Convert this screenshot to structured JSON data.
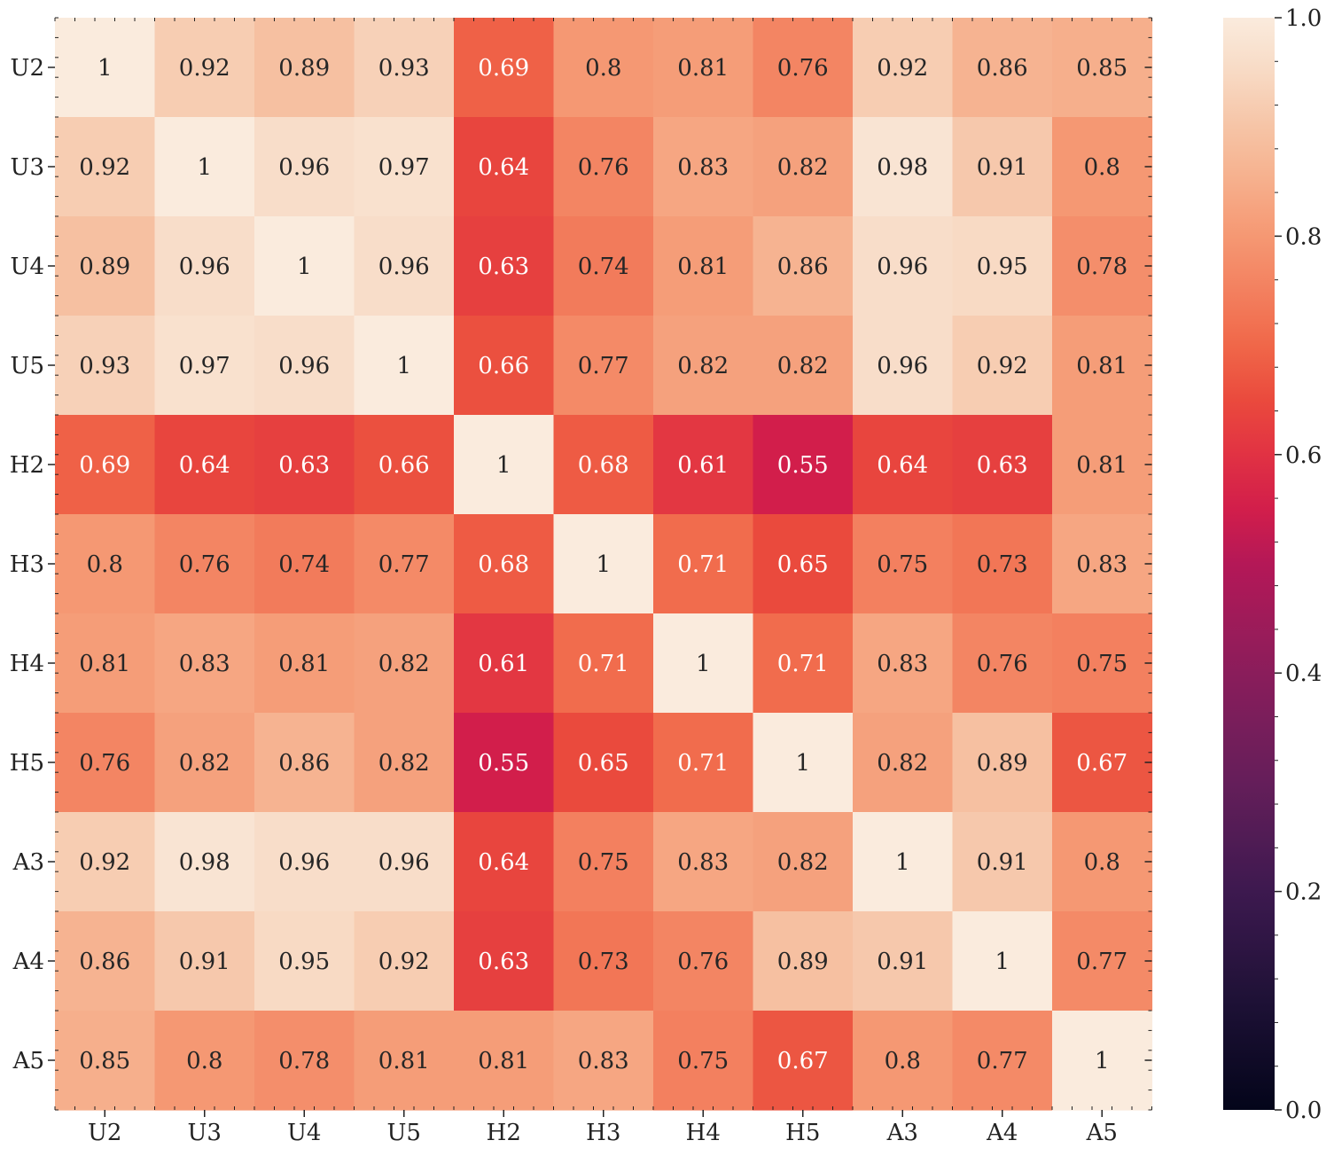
{
  "chart_data": {
    "type": "heatmap",
    "title": "",
    "xlabel": "",
    "ylabel": "",
    "x_categories": [
      "U2",
      "U3",
      "U4",
      "U5",
      "H2",
      "H3",
      "H4",
      "H5",
      "A3",
      "A4",
      "A5"
    ],
    "y_categories": [
      "U2",
      "U3",
      "U4",
      "U5",
      "H2",
      "H3",
      "H4",
      "H5",
      "A3",
      "A4",
      "A5"
    ],
    "values": [
      [
        1,
        0.92,
        0.89,
        0.93,
        0.69,
        0.8,
        0.81,
        0.76,
        0.92,
        0.86,
        0.85
      ],
      [
        0.92,
        1,
        0.96,
        0.97,
        0.64,
        0.76,
        0.83,
        0.82,
        0.98,
        0.91,
        0.8
      ],
      [
        0.89,
        0.96,
        1,
        0.96,
        0.63,
        0.74,
        0.81,
        0.86,
        0.96,
        0.95,
        0.78
      ],
      [
        0.93,
        0.97,
        0.96,
        1,
        0.66,
        0.77,
        0.82,
        0.82,
        0.96,
        0.92,
        0.81
      ],
      [
        0.69,
        0.64,
        0.63,
        0.66,
        1,
        0.68,
        0.61,
        0.55,
        0.64,
        0.63,
        0.81
      ],
      [
        0.8,
        0.76,
        0.74,
        0.77,
        0.68,
        1,
        0.71,
        0.65,
        0.75,
        0.73,
        0.83
      ],
      [
        0.81,
        0.83,
        0.81,
        0.82,
        0.61,
        0.71,
        1,
        0.71,
        0.83,
        0.76,
        0.75
      ],
      [
        0.76,
        0.82,
        0.86,
        0.82,
        0.55,
        0.65,
        0.71,
        1,
        0.82,
        0.89,
        0.67
      ],
      [
        0.92,
        0.98,
        0.96,
        0.96,
        0.64,
        0.75,
        0.83,
        0.82,
        1,
        0.91,
        0.8
      ],
      [
        0.86,
        0.91,
        0.95,
        0.92,
        0.63,
        0.73,
        0.76,
        0.89,
        0.91,
        1,
        0.77
      ],
      [
        0.85,
        0.8,
        0.78,
        0.81,
        0.81,
        0.83,
        0.75,
        0.67,
        0.8,
        0.77,
        1
      ]
    ],
    "annotated": true,
    "colormap": "rocket",
    "vmin": 0.0,
    "vmax": 1.0,
    "colorbar": {
      "ticks": [
        0.0,
        0.2,
        0.4,
        0.6,
        0.8,
        1.0
      ],
      "tick_labels": [
        "0.0",
        "0.2",
        "0.4",
        "0.6",
        "0.8",
        "1.0"
      ],
      "placement": "right"
    },
    "grid": false
  }
}
